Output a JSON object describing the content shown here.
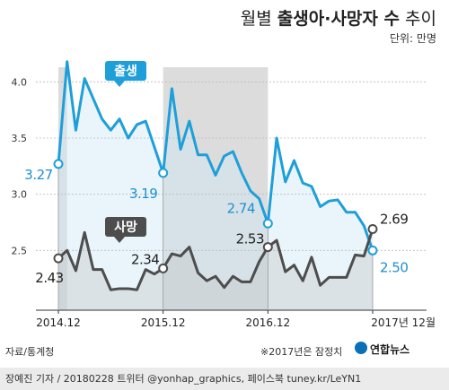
{
  "header": {
    "title_pre": "월별 ",
    "title_bold": "출생아·사망자 수",
    "title_post": " 추이",
    "unit": "단위: 만명"
  },
  "chart_data": {
    "type": "line",
    "ylim": [
      2.0,
      4.25
    ],
    "y_ticks": [
      "4.0",
      "3.5",
      "3.0",
      "2.5"
    ],
    "y_tick_values": [
      4.0,
      3.5,
      3.0,
      2.5
    ],
    "x_labels": [
      {
        "index": 0,
        "text": "2014.12"
      },
      {
        "index": 12,
        "text": "2015.12"
      },
      {
        "index": 24,
        "text": "2016.12"
      },
      {
        "index": 36,
        "text": "2017년 12월"
      }
    ],
    "shaded_spans": [
      [
        0,
        1
      ],
      [
        12,
        24
      ]
    ],
    "series": [
      {
        "name": "출생",
        "color": "#1f9fd9",
        "values": [
          3.27,
          4.18,
          3.57,
          4.03,
          3.85,
          3.67,
          3.57,
          3.67,
          3.5,
          3.62,
          3.65,
          3.42,
          3.19,
          3.94,
          3.4,
          3.65,
          3.35,
          3.35,
          3.17,
          3.34,
          3.38,
          3.19,
          3.03,
          2.96,
          2.74,
          3.5,
          3.11,
          3.3,
          3.1,
          3.07,
          2.89,
          2.94,
          2.95,
          2.84,
          2.84,
          2.72,
          2.5
        ],
        "annotations": [
          {
            "index": 0,
            "text": "3.27"
          },
          {
            "index": 12,
            "text": "3.19"
          },
          {
            "index": 24,
            "text": "2.74"
          },
          {
            "index": 36,
            "text": "2.50"
          }
        ]
      },
      {
        "name": "사망",
        "color": "#4d4d4d",
        "values": [
          2.43,
          2.5,
          2.32,
          2.66,
          2.33,
          2.33,
          2.15,
          2.16,
          2.16,
          2.15,
          2.33,
          2.29,
          2.34,
          2.47,
          2.45,
          2.53,
          2.3,
          2.23,
          2.27,
          2.17,
          2.27,
          2.22,
          2.22,
          2.4,
          2.53,
          2.59,
          2.31,
          2.37,
          2.23,
          2.44,
          2.19,
          2.26,
          2.26,
          2.26,
          2.46,
          2.45,
          2.69
        ],
        "annotations": [
          {
            "index": 0,
            "text": "2.43"
          },
          {
            "index": 12,
            "text": "2.34"
          },
          {
            "index": 24,
            "text": "2.53"
          },
          {
            "index": 36,
            "text": "2.69"
          }
        ]
      }
    ]
  },
  "footer": {
    "source": "자료/통계청",
    "note": "※2017년은 잠정치",
    "brand": "연합뉴스",
    "credit": "장예진 기자 / 20180228 트위터 @yonhap_graphics, 페이스북 tuney.kr/LeYN1"
  }
}
